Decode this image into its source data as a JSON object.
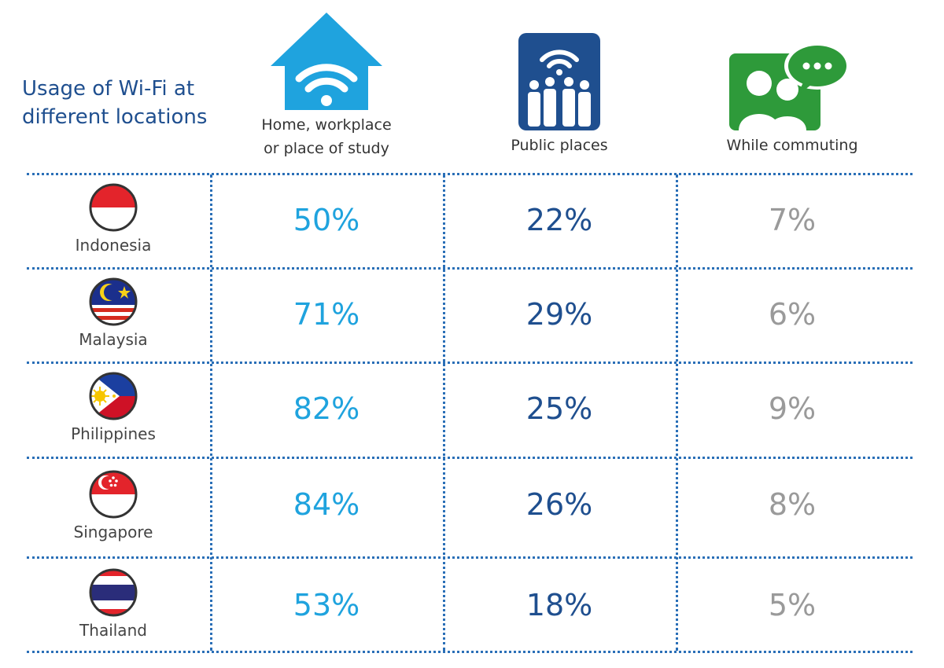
{
  "title": {
    "line1": "Usage of Wi-Fi at",
    "line2": "different locations"
  },
  "columns": [
    {
      "key": "home",
      "label_line1": "Home, workplace",
      "label_line2": "or place of study",
      "icon": "home-wifi-icon",
      "color": "#1fa3de"
    },
    {
      "key": "public",
      "label_line1": "Public places",
      "label_line2": "",
      "icon": "public-places-icon",
      "color": "#1f4f8f"
    },
    {
      "key": "commute",
      "label_line1": "While commuting",
      "label_line2": "",
      "icon": "commuting-chat-icon",
      "color": "#2e9a3a"
    }
  ],
  "rows": [
    {
      "country": "Indonesia",
      "home": "50%",
      "public": "22%",
      "commute": "7%"
    },
    {
      "country": "Malaysia",
      "home": "71%",
      "public": "29%",
      "commute": "6%"
    },
    {
      "country": "Philippines",
      "home": "82%",
      "public": "25%",
      "commute": "9%"
    },
    {
      "country": "Singapore",
      "home": "84%",
      "public": "26%",
      "commute": "8%"
    },
    {
      "country": "Thailand",
      "home": "53%",
      "public": "18%",
      "commute": "5%"
    }
  ],
  "chart_data": {
    "type": "table",
    "title": "Usage of Wi-Fi at different locations",
    "categories": [
      "Indonesia",
      "Malaysia",
      "Philippines",
      "Singapore",
      "Thailand"
    ],
    "series": [
      {
        "name": "Home, workplace or place of study",
        "values": [
          50,
          71,
          82,
          84,
          53
        ],
        "unit": "%"
      },
      {
        "name": "Public places",
        "values": [
          22,
          29,
          25,
          26,
          18
        ],
        "unit": "%"
      },
      {
        "name": "While commuting",
        "values": [
          7,
          6,
          9,
          8,
          5
        ],
        "unit": "%"
      }
    ]
  }
}
